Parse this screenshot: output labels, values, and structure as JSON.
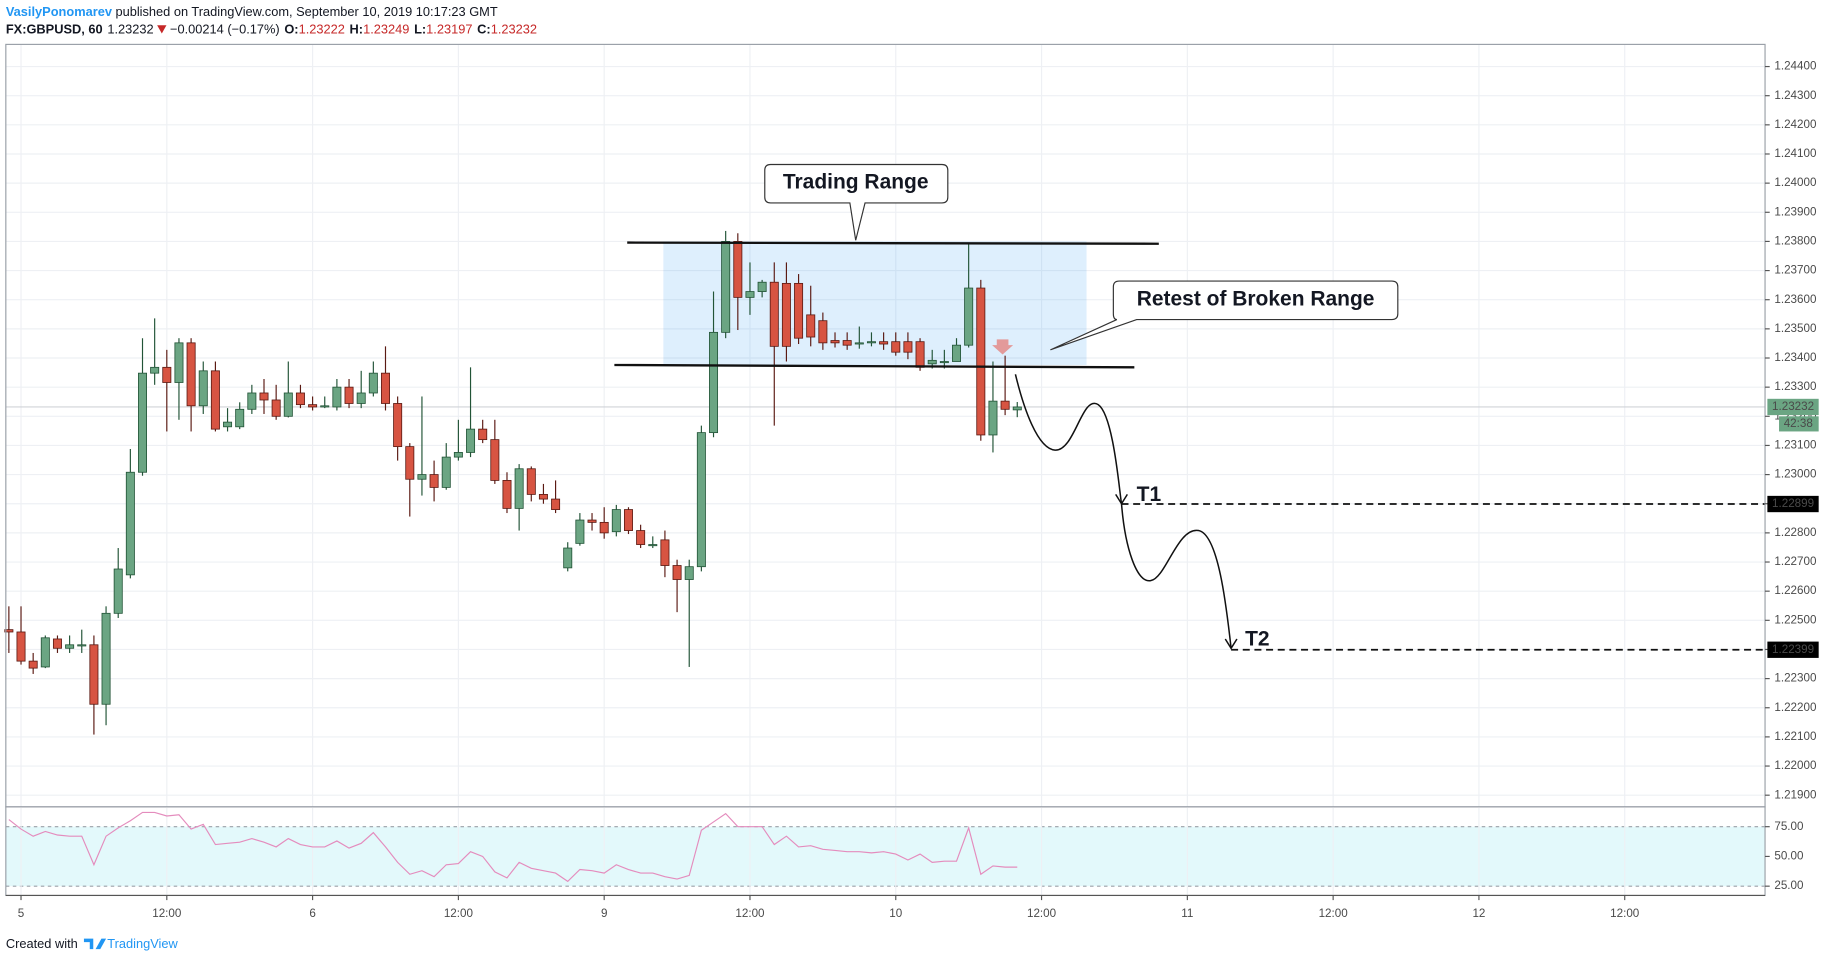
{
  "header": {
    "author": "VasilyPonomarev",
    "published": "published on TradingView.com, September 10, 2019 10:17:23 GMT",
    "symbol": "FX:GBPUSD, 60",
    "price": "1.23232",
    "change": "−0.00214 (−0.17%)",
    "ohlc": [
      {
        "label": "O:",
        "value": "1.23222"
      },
      {
        "label": "H:",
        "value": "1.23249"
      },
      {
        "label": "L:",
        "value": "1.23197"
      },
      {
        "label": "C:",
        "value": "1.23232"
      }
    ]
  },
  "footer": {
    "created": "Created with",
    "brand": "TradingView"
  },
  "chart_data": [
    {
      "type": "candlestick",
      "annotations": [
        "Trading Range",
        "Retest of Broken Range"
      ],
      "up_color": "#6ba583",
      "up_border": "#225437",
      "down_color": "#d75442",
      "down_border": "#5b1a13",
      "xlim": [
        -1.25,
        143.55
      ],
      "ylim": [
        1.2186,
        1.24476
      ],
      "grid": true,
      "yticks": [
        {
          "value": 1.219,
          "label": "1.21900"
        },
        {
          "value": 1.22,
          "label": "1.22000"
        },
        {
          "value": 1.221,
          "label": "1.22100"
        },
        {
          "value": 1.222,
          "label": "1.22200"
        },
        {
          "value": 1.223,
          "label": "1.22300"
        },
        {
          "value": 1.224,
          "label": "1.22400"
        },
        {
          "value": 1.225,
          "label": "1.22500"
        },
        {
          "value": 1.226,
          "label": "1.22600"
        },
        {
          "value": 1.227,
          "label": "1.22700"
        },
        {
          "value": 1.228,
          "label": "1.22800"
        },
        {
          "value": 1.229,
          "label": "1.22900"
        },
        {
          "value": 1.23,
          "label": "1.23000"
        },
        {
          "value": 1.231,
          "label": "1.23100"
        },
        {
          "value": 1.232,
          "label": "1.23200"
        },
        {
          "value": 1.233,
          "label": "1.23300"
        },
        {
          "value": 1.234,
          "label": "1.23400"
        },
        {
          "value": 1.235,
          "label": "1.23500"
        },
        {
          "value": 1.236,
          "label": "1.23600"
        },
        {
          "value": 1.237,
          "label": "1.23700"
        },
        {
          "value": 1.238,
          "label": "1.23800"
        },
        {
          "value": 1.239,
          "label": "1.23900"
        },
        {
          "value": 1.24,
          "label": "1.24000"
        },
        {
          "value": 1.241,
          "label": "1.24100"
        },
        {
          "value": 1.242,
          "label": "1.24200"
        },
        {
          "value": 1.243,
          "label": "1.24300"
        },
        {
          "value": 1.244,
          "label": "1.24400"
        }
      ],
      "last_price": 1.23232,
      "last_color": "#6ba583",
      "countdown": "42:38",
      "targets": [
        {
          "name": "T1",
          "value": 1.22899
        },
        {
          "name": "T2",
          "value": 1.22399
        }
      ],
      "x": [
        -1,
        0,
        1,
        2,
        3,
        4,
        5,
        6,
        7,
        8,
        9,
        10,
        11,
        12,
        13,
        14,
        15,
        16,
        17,
        18,
        19,
        20,
        21,
        22,
        23,
        24,
        25,
        26,
        27,
        28,
        29,
        30,
        31,
        32,
        33,
        34,
        35,
        36,
        37,
        38,
        39,
        40,
        41,
        42,
        43,
        44,
        45,
        46,
        47,
        48,
        49,
        50,
        51,
        52,
        53,
        54,
        55,
        56,
        57,
        58,
        59,
        60,
        61,
        62,
        63,
        64,
        65,
        66,
        67,
        68,
        69,
        70,
        71,
        72,
        73,
        74,
        75,
        76,
        77,
        78,
        79,
        80,
        81,
        82
      ],
      "open": [
        1.22468,
        1.2246,
        1.2236,
        1.2234,
        1.22436,
        1.22404,
        1.22416,
        1.22416,
        1.22212,
        1.22524,
        1.22656,
        1.23008,
        1.23348,
        1.23368,
        1.23316,
        1.23452,
        1.23236,
        1.23356,
        1.23164,
        1.23164,
        1.23224,
        1.2328,
        1.23256,
        1.232,
        1.2328,
        1.2324,
        1.23236,
        1.23232,
        1.233,
        1.23244,
        1.2328,
        1.23348,
        1.23244,
        1.23096,
        1.22984,
        1.23,
        1.22956,
        1.2306,
        1.23076,
        1.23156,
        1.2312,
        1.2298,
        1.22884,
        1.2302,
        1.22932,
        1.22916,
        1.2268,
        1.22764,
        1.22844,
        1.22836,
        1.22804,
        1.2288,
        1.22808,
        1.2276,
        1.22776,
        1.22688,
        1.2264,
        1.22684,
        1.23144,
        1.23488,
        1.238,
        1.23608,
        1.23628,
        1.2366,
        1.23656,
        1.23656,
        1.23548,
        1.23528,
        1.2346,
        1.2346,
        1.23452,
        1.23456,
        1.23456,
        1.23456,
        1.23456,
        1.23456,
        1.2338,
        1.23388,
        1.23388,
        1.23444,
        1.2364,
        1.23136,
        1.23252,
        1.23222
      ],
      "high": [
        1.22548,
        1.22548,
        1.22388,
        1.22448,
        1.22448,
        1.22448,
        1.22468,
        1.22448,
        1.22548,
        1.22748,
        1.23088,
        1.23468,
        1.23536,
        1.23428,
        1.23468,
        1.23468,
        1.23388,
        1.23388,
        1.23228,
        1.23248,
        1.23308,
        1.23328,
        1.23308,
        1.23388,
        1.23308,
        1.23268,
        1.23268,
        1.23328,
        1.23328,
        1.23356,
        1.23388,
        1.2344,
        1.23268,
        1.23108,
        1.23268,
        1.23048,
        1.23108,
        1.23188,
        1.23368,
        1.23188,
        1.23188,
        1.23008,
        1.23036,
        1.23028,
        1.22968,
        1.2298,
        1.22768,
        1.22868,
        1.22868,
        1.22888,
        1.22896,
        1.22888,
        1.22828,
        1.22788,
        1.22808,
        1.22708,
        1.22708,
        1.23168,
        1.23628,
        1.23836,
        1.23828,
        1.23728,
        1.23668,
        1.23728,
        1.23728,
        1.23688,
        1.23648,
        1.23556,
        1.23488,
        1.23488,
        1.23508,
        1.23488,
        1.23488,
        1.23488,
        1.23488,
        1.23468,
        1.23428,
        1.23428,
        1.23468,
        1.23796,
        1.23668,
        1.23388,
        1.23408,
        1.23249
      ],
      "low": [
        1.22388,
        1.22348,
        1.22316,
        1.22336,
        1.22388,
        1.22388,
        1.22388,
        1.22108,
        1.2214,
        1.22508,
        1.22644,
        1.22996,
        1.23308,
        1.23148,
        1.23188,
        1.23148,
        1.23208,
        1.23148,
        1.23148,
        1.23156,
        1.23208,
        1.23208,
        1.23188,
        1.23196,
        1.23228,
        1.2322,
        1.23228,
        1.2322,
        1.23228,
        1.23228,
        1.23268,
        1.2322,
        1.23048,
        1.22856,
        1.22928,
        1.22908,
        1.22948,
        1.23048,
        1.2306,
        1.23108,
        1.22968,
        1.22868,
        1.22808,
        1.22908,
        1.229,
        1.22868,
        1.22668,
        1.22756,
        1.22808,
        1.2278,
        1.22788,
        1.22796,
        1.22748,
        1.22748,
        1.22648,
        1.22528,
        1.2234,
        1.22668,
        1.23128,
        1.23468,
        1.23496,
        1.23548,
        1.23608,
        1.23168,
        1.23388,
        1.23448,
        1.2344,
        1.23428,
        1.23436,
        1.23428,
        1.23432,
        1.2344,
        1.23428,
        1.23408,
        1.23396,
        1.23356,
        1.23364,
        1.23364,
        1.23388,
        1.23436,
        1.23116,
        1.23076,
        1.23204,
        1.23197
      ],
      "close": [
        1.2246,
        1.2236,
        1.22336,
        1.2244,
        1.22404,
        1.22416,
        1.22416,
        1.22212,
        1.22524,
        1.22676,
        1.23008,
        1.23348,
        1.23368,
        1.23316,
        1.23452,
        1.23236,
        1.23356,
        1.23156,
        1.2318,
        1.23224,
        1.2328,
        1.23256,
        1.232,
        1.2328,
        1.2324,
        1.23232,
        1.23236,
        1.233,
        1.23244,
        1.2328,
        1.23348,
        1.23244,
        1.23096,
        1.22984,
        1.23,
        1.22956,
        1.2306,
        1.23076,
        1.23156,
        1.2312,
        1.2298,
        1.22884,
        1.2302,
        1.22932,
        1.22916,
        1.2288,
        1.22748,
        1.22844,
        1.22836,
        1.228,
        1.2288,
        1.22808,
        1.2276,
        1.2276,
        1.22688,
        1.2264,
        1.22684,
        1.23144,
        1.23488,
        1.238,
        1.23608,
        1.23628,
        1.2366,
        1.2344,
        1.2344,
        1.23468,
        1.23472,
        1.23452,
        1.23452,
        1.23444,
        1.23452,
        1.23456,
        1.23448,
        1.2342,
        1.2342,
        1.23368,
        1.23392,
        1.23388,
        1.23444,
        1.2364,
        1.23136,
        1.23252,
        1.23224,
        1.23232
      ]
    },
    {
      "type": "line",
      "color": "#e48cbd",
      "band": [
        25,
        75
      ],
      "band_color": "#e3f9fb",
      "xlim": [
        -1.25,
        143.55
      ],
      "ylim": [
        17.2,
        90.7
      ],
      "yticks": [
        {
          "value": 25,
          "label": "25.00"
        },
        {
          "value": 50,
          "label": "50.00"
        },
        {
          "value": 75,
          "label": "75.00"
        }
      ],
      "xticks": [
        {
          "value": 0,
          "label": "5"
        },
        {
          "value": 12,
          "label": "12:00"
        },
        {
          "value": 24,
          "label": "6"
        },
        {
          "value": 36,
          "label": "12:00"
        },
        {
          "value": 48,
          "label": "9"
        },
        {
          "value": 60,
          "label": "12:00"
        },
        {
          "value": 72,
          "label": "10"
        },
        {
          "value": 84,
          "label": "12:00"
        },
        {
          "value": 96,
          "label": "11"
        },
        {
          "value": 108,
          "label": "12:00"
        },
        {
          "value": 120,
          "label": "12"
        },
        {
          "value": 132,
          "label": "12:00"
        }
      ],
      "x": [
        -1,
        0,
        1,
        2,
        3,
        4,
        5,
        6,
        7,
        8,
        9,
        10,
        11,
        12,
        13,
        14,
        15,
        16,
        17,
        18,
        19,
        20,
        21,
        22,
        23,
        24,
        25,
        26,
        27,
        28,
        29,
        30,
        31,
        32,
        33,
        34,
        35,
        36,
        37,
        38,
        39,
        40,
        41,
        42,
        43,
        44,
        45,
        46,
        47,
        48,
        49,
        50,
        51,
        52,
        53,
        54,
        55,
        56,
        57,
        58,
        59,
        60,
        61,
        62,
        63,
        64,
        65,
        66,
        67,
        68,
        69,
        70,
        71,
        72,
        73,
        74,
        75,
        76,
        77,
        78,
        79,
        80,
        81,
        82
      ],
      "values": [
        81,
        73,
        67,
        71,
        68,
        67,
        67,
        43,
        67,
        74,
        80,
        87,
        87,
        84,
        85,
        73,
        77,
        60,
        61,
        62,
        65,
        62,
        58,
        65,
        60,
        58,
        58,
        63,
        57,
        61,
        70,
        58,
        45,
        35,
        38,
        33,
        43,
        44,
        54,
        50,
        37,
        32,
        45,
        40,
        38,
        36,
        29,
        39,
        38,
        36,
        43,
        39,
        36,
        36,
        33,
        31,
        34,
        72,
        79,
        86,
        75,
        75,
        75,
        60,
        67,
        58,
        59,
        56,
        55,
        54,
        54,
        53,
        54,
        52,
        47,
        52,
        45,
        46,
        46,
        74,
        35,
        42,
        41,
        41
      ]
    }
  ]
}
